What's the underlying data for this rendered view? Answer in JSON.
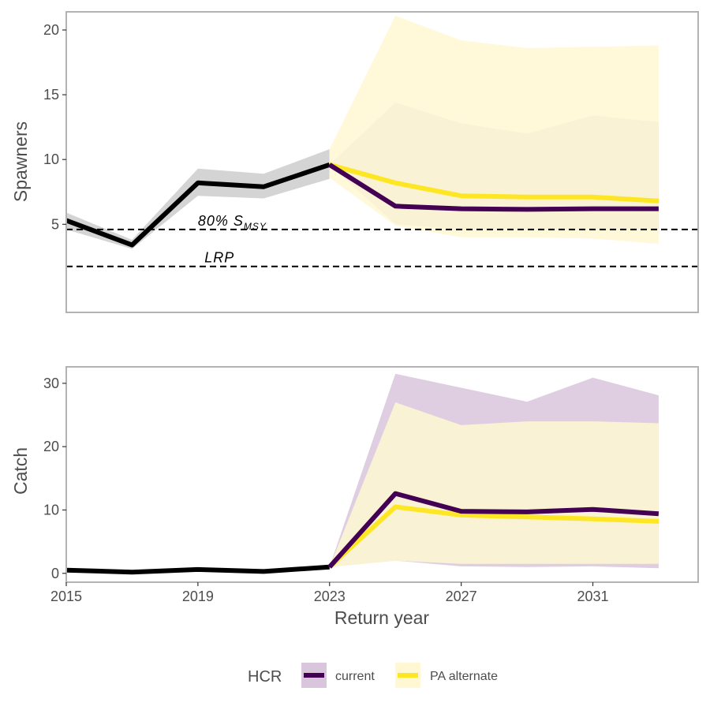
{
  "chart_data": [
    {
      "type": "line",
      "panel": "top",
      "ylabel": "Spawners",
      "xlim": [
        2015,
        2034.2
      ],
      "ylim": [
        -1.8,
        21.4
      ],
      "yticks": [
        5,
        10,
        15,
        20
      ],
      "grid": false,
      "historical": {
        "name": "observed",
        "color": "#000000",
        "ribbon_color": "#cccccc",
        "x": [
          2015,
          2017,
          2019,
          2021,
          2023
        ],
        "y": [
          5.3,
          3.4,
          8.2,
          7.9,
          9.6
        ],
        "lower": [
          4.6,
          3.1,
          7.2,
          7.0,
          8.5
        ],
        "upper": [
          5.9,
          3.8,
          9.3,
          8.9,
          10.8
        ]
      },
      "series": [
        {
          "name": "current",
          "color": "#440154",
          "ribbon_color": "#d9c6dc",
          "x": [
            2023,
            2025,
            2027,
            2029,
            2031,
            2033
          ],
          "y": [
            9.6,
            6.4,
            6.2,
            6.15,
            6.2,
            6.2
          ],
          "lower": [
            9.6,
            5.0,
            4.6,
            4.6,
            4.6,
            4.6
          ],
          "upper": [
            9.6,
            14.4,
            12.8,
            12.0,
            13.4,
            12.9
          ]
        },
        {
          "name": "PA alternate",
          "color": "#fde725",
          "ribbon_color": "#fff8d2",
          "x": [
            2023,
            2025,
            2027,
            2029,
            2031,
            2033
          ],
          "y": [
            9.6,
            8.2,
            7.2,
            7.1,
            7.1,
            6.8
          ],
          "lower": [
            8.6,
            4.9,
            4.0,
            4.0,
            3.9,
            3.5
          ],
          "upper": [
            10.8,
            21.1,
            19.2,
            18.6,
            18.7,
            18.8
          ]
        }
      ],
      "reference_lines": [
        {
          "label": "80% S",
          "subscript": "MSY",
          "value": 4.6,
          "label_x": 2019.0
        },
        {
          "label": "LRP",
          "subscript": "",
          "value": 1.75,
          "label_x": 2019.2
        }
      ]
    },
    {
      "type": "line",
      "panel": "bottom",
      "ylabel": "Catch",
      "xlabel": "Return year",
      "xlim": [
        2015,
        2034.2
      ],
      "ylim": [
        -1.4,
        32.6
      ],
      "xticks": [
        2015,
        2019,
        2023,
        2027,
        2031
      ],
      "yticks": [
        0,
        10,
        20,
        30
      ],
      "grid": false,
      "historical": {
        "name": "observed",
        "color": "#000000",
        "x": [
          2015,
          2017,
          2019,
          2021,
          2023
        ],
        "y": [
          0.5,
          0.2,
          0.6,
          0.3,
          1.0
        ]
      },
      "series": [
        {
          "name": "current",
          "color": "#440154",
          "ribbon_color": "#d9c6dc",
          "x": [
            2023,
            2025,
            2027,
            2029,
            2031,
            2033
          ],
          "y": [
            1.0,
            12.6,
            9.8,
            9.7,
            10.1,
            9.4
          ],
          "lower": [
            1.0,
            2.0,
            1.1,
            1.0,
            1.1,
            0.8
          ],
          "upper": [
            1.0,
            31.5,
            29.3,
            27.1,
            30.9,
            28.1
          ]
        },
        {
          "name": "PA alternate",
          "color": "#fde725",
          "ribbon_color": "#fff8d2",
          "x": [
            2023,
            2025,
            2027,
            2029,
            2031,
            2033
          ],
          "y": [
            1.0,
            10.5,
            9.2,
            8.9,
            8.6,
            8.2
          ],
          "lower": [
            1.0,
            2.0,
            1.5,
            1.5,
            1.5,
            1.5
          ],
          "upper": [
            1.0,
            27.0,
            23.4,
            24.0,
            24.0,
            23.7
          ]
        }
      ]
    }
  ],
  "legend": {
    "title": "HCR",
    "position": "bottom",
    "items": [
      {
        "label": "current",
        "line_color": "#440154",
        "fill_color": "#d9c6dc"
      },
      {
        "label": "PA alternate",
        "line_color": "#fde725",
        "fill_color": "#fff8d2"
      }
    ]
  }
}
